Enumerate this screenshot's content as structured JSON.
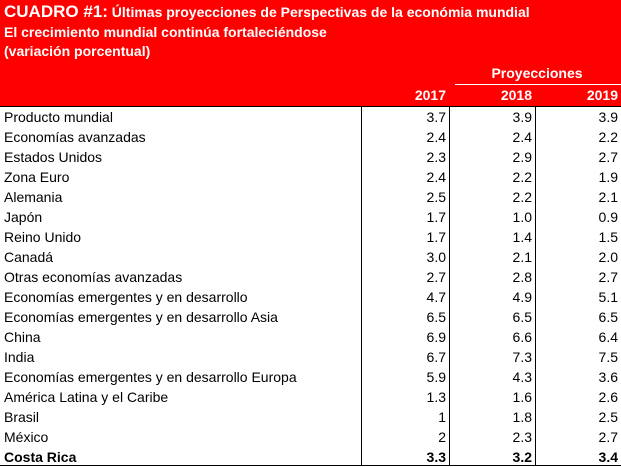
{
  "header": {
    "label": "CUADRO #1:",
    "title": "Últimas proyecciones de Perspectivas de la económia mundial",
    "subtitle": "El crecimiento mundial continúa fortaleciéndose",
    "note": "(variación porcentual)"
  },
  "table": {
    "group_header": "Proyecciones",
    "columns": [
      "2017",
      "2018",
      "2019"
    ],
    "rows": [
      [
        "Producto mundial",
        "3.7",
        "3.9",
        "3.9"
      ],
      [
        "Economías avanzadas",
        "2.4",
        "2.4",
        "2.2"
      ],
      [
        "Estados Unidos",
        "2.3",
        "2.9",
        "2.7"
      ],
      [
        "Zona Euro",
        "2.4",
        "2.2",
        "1.9"
      ],
      [
        "Alemania",
        "2.5",
        "2.2",
        "2.1"
      ],
      [
        "Japón",
        "1.7",
        "1.0",
        "0.9"
      ],
      [
        "Reino Unido",
        "1.7",
        "1.4",
        "1.5"
      ],
      [
        "Canadá",
        "3.0",
        "2.1",
        "2.0"
      ],
      [
        "Otras economías avanzadas",
        "2.7",
        "2.8",
        "2.7"
      ],
      [
        "Economías emergentes y en desarrollo",
        "4.7",
        "4.9",
        "5.1"
      ],
      [
        "Economías emergentes y en desarrollo Asia",
        "6.5",
        "6.5",
        "6.5"
      ],
      [
        "China",
        "6.9",
        "6.6",
        "6.4"
      ],
      [
        "India",
        "6.7",
        "7.3",
        "7.5"
      ],
      [
        "Economías emergentes y en desarrollo Europa",
        "5.9",
        "4.3",
        "3.6"
      ],
      [
        "América Latina y el Caribe",
        "1.3",
        "1.6",
        "2.6"
      ],
      [
        "Brasil",
        "1",
        "1.8",
        "2.5"
      ],
      [
        "México",
        "2",
        "2.3",
        "2.7"
      ],
      [
        "Costa Rica",
        "3.3",
        "3.2",
        "3.4"
      ]
    ]
  }
}
